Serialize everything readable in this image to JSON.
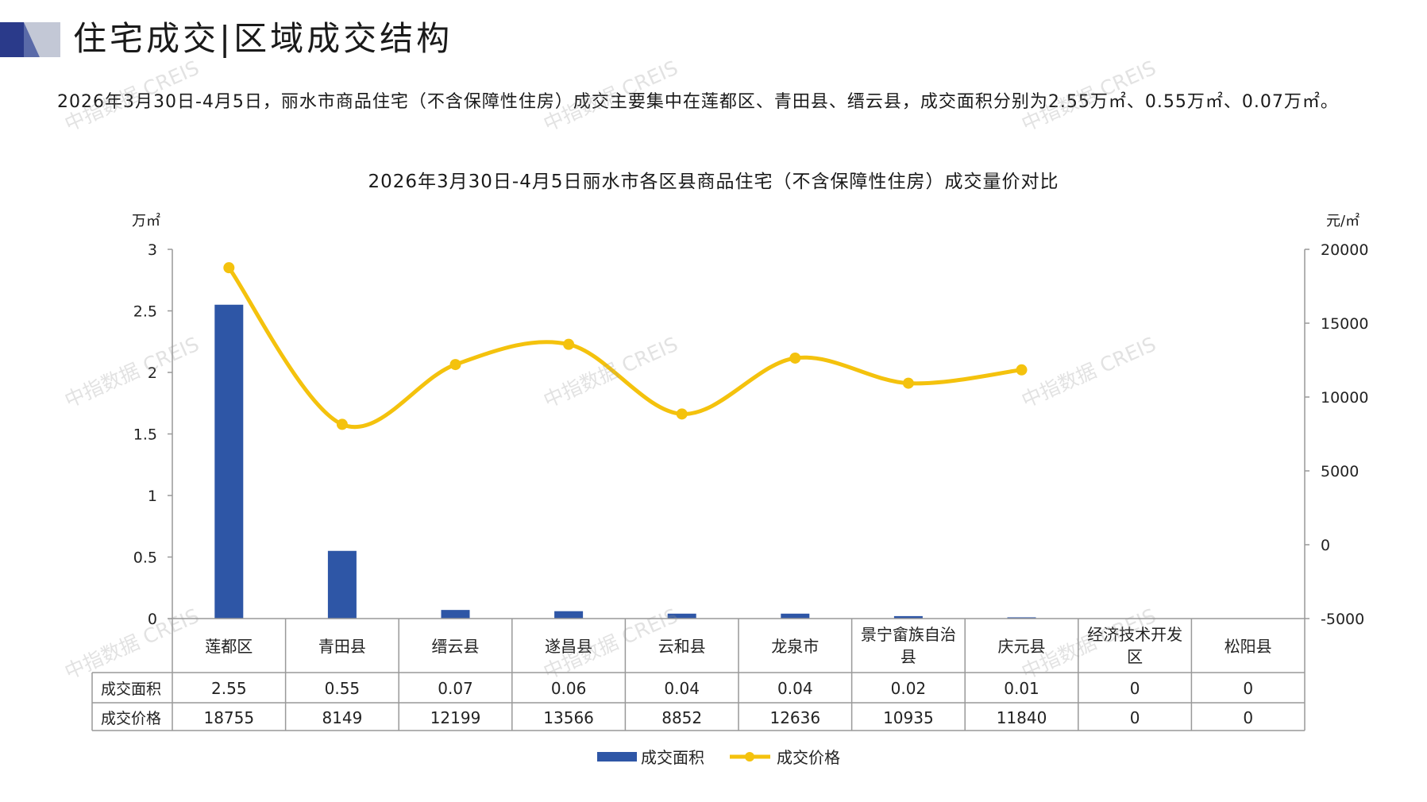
{
  "header": {
    "title": "住宅成交|区域成交结构"
  },
  "summary": "2026年3月30日-4月5日，丽水市商品住宅（不含保障性住房）成交主要集中在莲都区、青田县、缙云县，成交面积分别为2.55万㎡、0.55万㎡、0.07万㎡。",
  "watermark": "中指数据 CREIS",
  "colors": {
    "bar": "#2e56a6",
    "line": "#f4c20d",
    "grid": "#999999",
    "header_dark": "#2a3a8a",
    "header_light": "#c3c8d6"
  },
  "chart_data": {
    "type": "bar",
    "title": "2026年3月30日-4月5日丽水市各区县商品住宅（不含保障性住房）成交量价对比",
    "categories": [
      "莲都区",
      "青田县",
      "缙云县",
      "遂昌县",
      "云和县",
      "龙泉市",
      "景宁畲族自治县",
      "庆元县",
      "经济技术开发区",
      "松阳县"
    ],
    "series": [
      {
        "name": "成交面积",
        "type": "bar",
        "axis": "left",
        "values": [
          2.55,
          0.55,
          0.07,
          0.06,
          0.04,
          0.04,
          0.02,
          0.01,
          0,
          0
        ],
        "labels": [
          "2.55",
          "0.55",
          "0.07",
          "0.06",
          "0.04",
          "0.04",
          "0.02",
          "0.01",
          "0",
          "0"
        ]
      },
      {
        "name": "成交价格",
        "type": "line",
        "axis": "right",
        "values": [
          18755,
          8149,
          12199,
          13566,
          8852,
          12636,
          10935,
          11840,
          0,
          0
        ],
        "labels": [
          "18755",
          "8149",
          "12199",
          "13566",
          "8852",
          "12636",
          "10935",
          "11840",
          "0",
          "0"
        ],
        "plotted_points": 8
      }
    ],
    "y_left": {
      "unit": "万㎡",
      "ticks": [
        "0",
        "0.5",
        "1",
        "1.5",
        "2",
        "2.5",
        "3"
      ],
      "lim": [
        0,
        3
      ]
    },
    "y_right": {
      "unit": "元/㎡",
      "ticks": [
        "-5000",
        "0",
        "5000",
        "10000",
        "15000",
        "20000"
      ],
      "lim": [
        -5000,
        20000
      ]
    },
    "legend": {
      "placement": "bottom"
    },
    "data_table": true
  }
}
